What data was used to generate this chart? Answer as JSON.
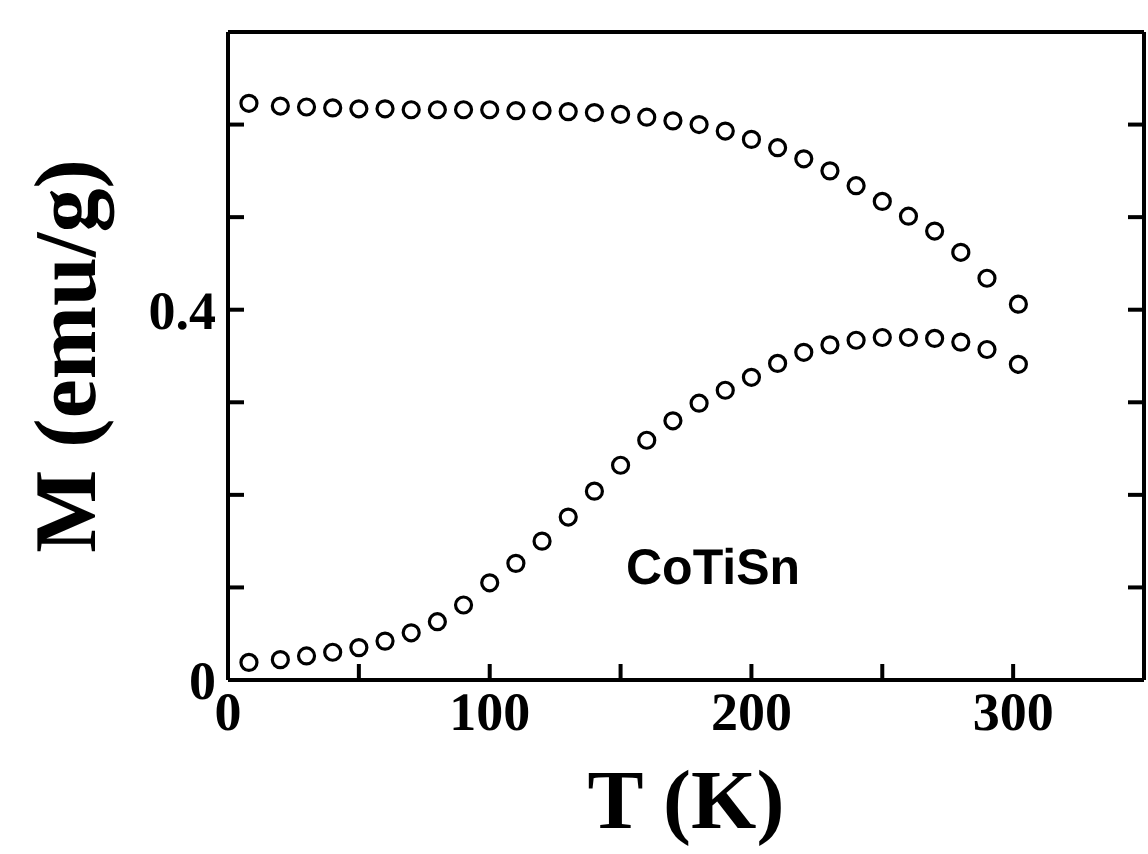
{
  "chart_data": {
    "type": "scatter",
    "xlabel": "T (K)",
    "ylabel": "M (emu/g)",
    "annotations": [
      "CoTiSn"
    ],
    "x": [
      8,
      20,
      30,
      40,
      50,
      60,
      70,
      80,
      90,
      100,
      110,
      120,
      130,
      140,
      150,
      160,
      170,
      180,
      190,
      200,
      210,
      220,
      230,
      240,
      250,
      260,
      270,
      280,
      290,
      302
    ],
    "series": [
      {
        "color": "#000000",
        "values": [
          0.623,
          0.62,
          0.619,
          0.618,
          0.617,
          0.617,
          0.616,
          0.616,
          0.616,
          0.616,
          0.615,
          0.615,
          0.614,
          0.613,
          0.611,
          0.608,
          0.604,
          0.6,
          0.593,
          0.584,
          0.575,
          0.563,
          0.55,
          0.534,
          0.517,
          0.501,
          0.485,
          0.462,
          0.434,
          0.406
        ]
      },
      {
        "color": "#000000",
        "values": [
          0.019,
          0.022,
          0.026,
          0.03,
          0.035,
          0.042,
          0.051,
          0.063,
          0.081,
          0.105,
          0.126,
          0.15,
          0.176,
          0.204,
          0.232,
          0.259,
          0.28,
          0.299,
          0.313,
          0.327,
          0.342,
          0.354,
          0.362,
          0.367,
          0.37,
          0.37,
          0.369,
          0.365,
          0.357,
          0.341
        ]
      }
    ],
    "xlim": [
      0,
      350
    ],
    "xticks": [
      0,
      {
        "value": 50,
        "label": null
      },
      100,
      {
        "value": 150,
        "label": null
      },
      200,
      {
        "value": 250,
        "label": null
      },
      300
    ],
    "ylim": [
      0,
      0.7
    ],
    "yticks": [
      0,
      {
        "value": 0.1,
        "label": null
      },
      {
        "value": 0.2,
        "label": null
      },
      {
        "value": 0.3,
        "label": null
      },
      0.4,
      {
        "value": 0.5,
        "label": null
      },
      {
        "value": 0.6,
        "label": null
      }
    ],
    "marker": "circle",
    "grid": false,
    "legend": false
  }
}
